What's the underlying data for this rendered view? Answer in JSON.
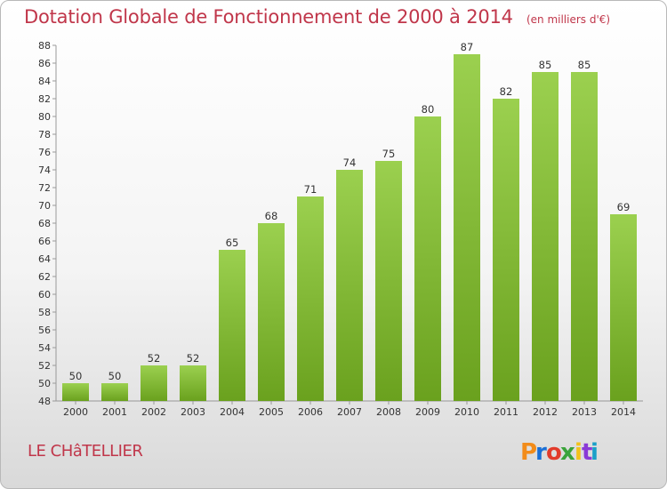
{
  "title": "Dotation Globale de Fonctionnement de 2000 à 2014",
  "subtitle": "(en milliers d'€)",
  "commune": "LE CHâTELLIER",
  "logo": {
    "text": "Proxiti",
    "colors": [
      "#f28c1a",
      "#1a6fd6",
      "#e23b2b",
      "#3aa33a",
      "#f2c21a",
      "#8a3ad6",
      "#1aa0c8"
    ]
  },
  "chart_data": {
    "type": "bar",
    "title": "Dotation Globale de Fonctionnement de 2000 à 2014",
    "subtitle": "(en milliers d'€)",
    "categories": [
      "2000",
      "2001",
      "2002",
      "2003",
      "2004",
      "2005",
      "2006",
      "2007",
      "2008",
      "2009",
      "2010",
      "2011",
      "2012",
      "2013",
      "2014"
    ],
    "values": [
      50,
      50,
      52,
      52,
      65,
      68,
      71,
      74,
      75,
      80,
      87,
      82,
      85,
      85,
      69
    ],
    "ylim": [
      48,
      88
    ],
    "yticks": [
      48,
      50,
      52,
      54,
      56,
      58,
      60,
      62,
      64,
      66,
      68,
      70,
      72,
      74,
      76,
      78,
      80,
      82,
      84,
      86,
      88
    ],
    "grid": false,
    "bar_color_top": "#9bd04f",
    "bar_color_bottom": "#6aa11e",
    "axis_color": "#999999"
  }
}
